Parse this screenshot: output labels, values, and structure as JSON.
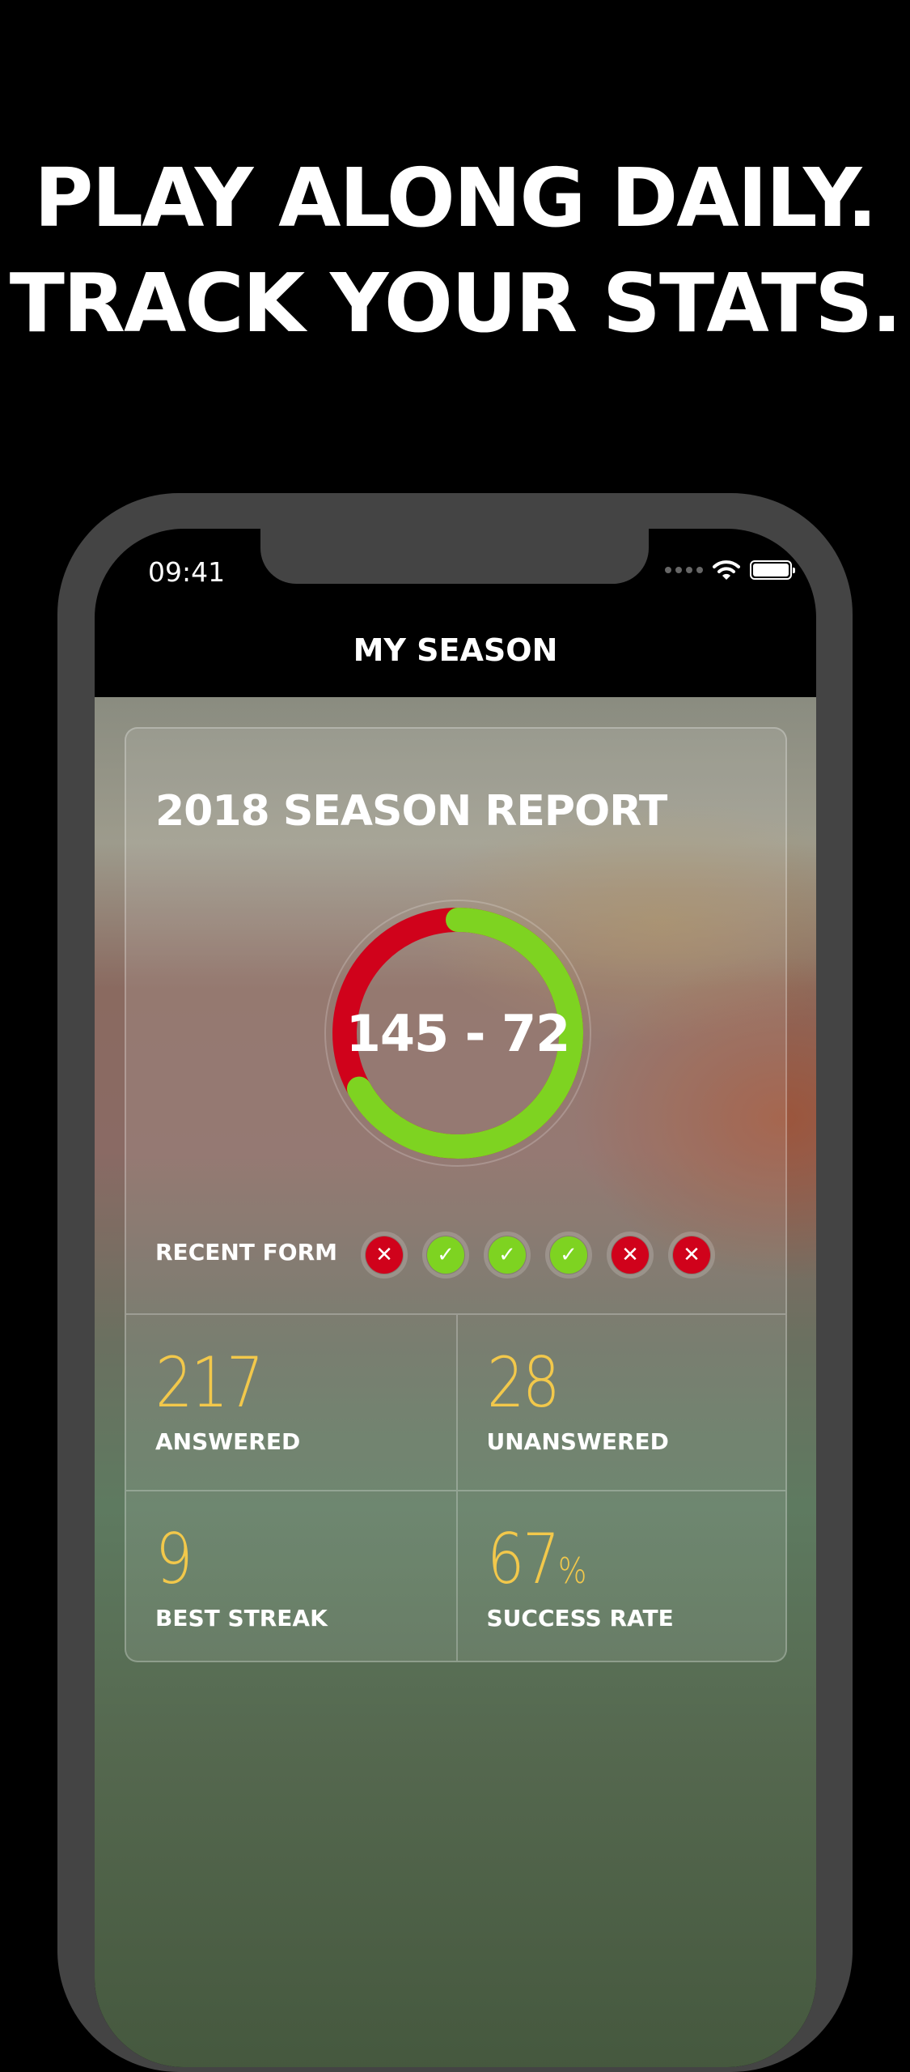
{
  "headline": {
    "line1": "PLAY ALONG DAILY.",
    "line2": "TRACK YOUR STATS."
  },
  "status_bar": {
    "time": "09:41"
  },
  "nav": {
    "title": "MY SEASON"
  },
  "report": {
    "title": "2018 SEASON REPORT",
    "score": "145 - 72",
    "wins": 145,
    "losses": 72,
    "colors": {
      "win": "#7ed321",
      "loss": "#d0021b",
      "stat": "#f2c84b"
    },
    "recent_form_label": "RECENT FORM",
    "recent_form": [
      "loss",
      "win",
      "win",
      "win",
      "loss",
      "loss"
    ],
    "stats": [
      {
        "value": "217",
        "suffix": "",
        "label": "ANSWERED"
      },
      {
        "value": "28",
        "suffix": "",
        "label": "UNANSWERED"
      },
      {
        "value": "9",
        "suffix": "",
        "label": "BEST STREAK"
      },
      {
        "value": "67",
        "suffix": "%",
        "label": "SUCCESS RATE"
      }
    ]
  }
}
